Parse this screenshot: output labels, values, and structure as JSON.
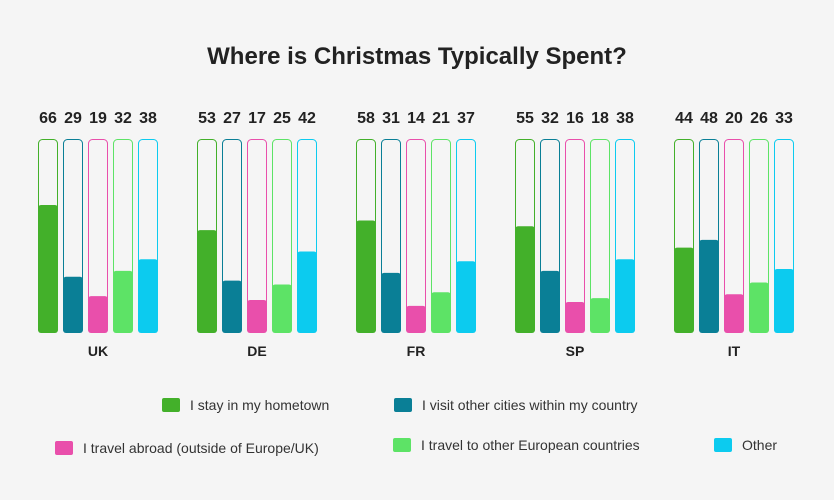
{
  "chart_data": {
    "type": "bar",
    "title": "Where is Christmas Typically Spent?",
    "categories": [
      "UK",
      "DE",
      "FR",
      "SP",
      "IT"
    ],
    "ylim": [
      0,
      100
    ],
    "series": [
      {
        "name": "I stay in my hometown",
        "color": "#43b02a",
        "values": [
          66,
          53,
          58,
          55,
          44
        ]
      },
      {
        "name": "I visit other cities within my country",
        "color": "#0a7f96",
        "values": [
          29,
          27,
          31,
          32,
          48
        ]
      },
      {
        "name": "I travel abroad (outside of Europe/UK)",
        "color": "#e94fab",
        "values": [
          19,
          17,
          14,
          16,
          20
        ]
      },
      {
        "name": "I travel to other European countries",
        "color": "#5de366",
        "values": [
          32,
          25,
          21,
          18,
          26
        ]
      },
      {
        "name": "Other",
        "color": "#0ccbef",
        "values": [
          38,
          42,
          37,
          38,
          33
        ]
      }
    ]
  }
}
